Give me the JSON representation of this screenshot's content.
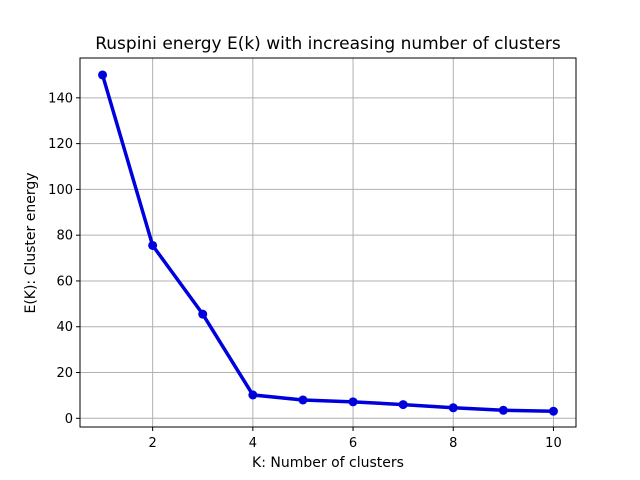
{
  "chart_data": {
    "type": "line",
    "title": "Ruspini energy E(k) with increasing number of clusters",
    "xlabel": "K: Number of clusters",
    "ylabel": "E(K): Cluster energy",
    "xlim": [
      0.55,
      10.45
    ],
    "ylim": [
      -3.8,
      157.4
    ],
    "xticks": [
      2,
      4,
      6,
      8,
      10
    ],
    "yticks": [
      0,
      20,
      40,
      60,
      80,
      100,
      120,
      140
    ],
    "grid": true,
    "series": [
      {
        "x": [
          1,
          2,
          3,
          4,
          5,
          6,
          7,
          8,
          9,
          10
        ],
        "values": [
          150.0,
          75.5,
          45.5,
          10.2,
          8.0,
          7.2,
          6.0,
          4.6,
          3.5,
          3.1
        ],
        "color": "#0000dd",
        "marker": "circle"
      }
    ]
  }
}
